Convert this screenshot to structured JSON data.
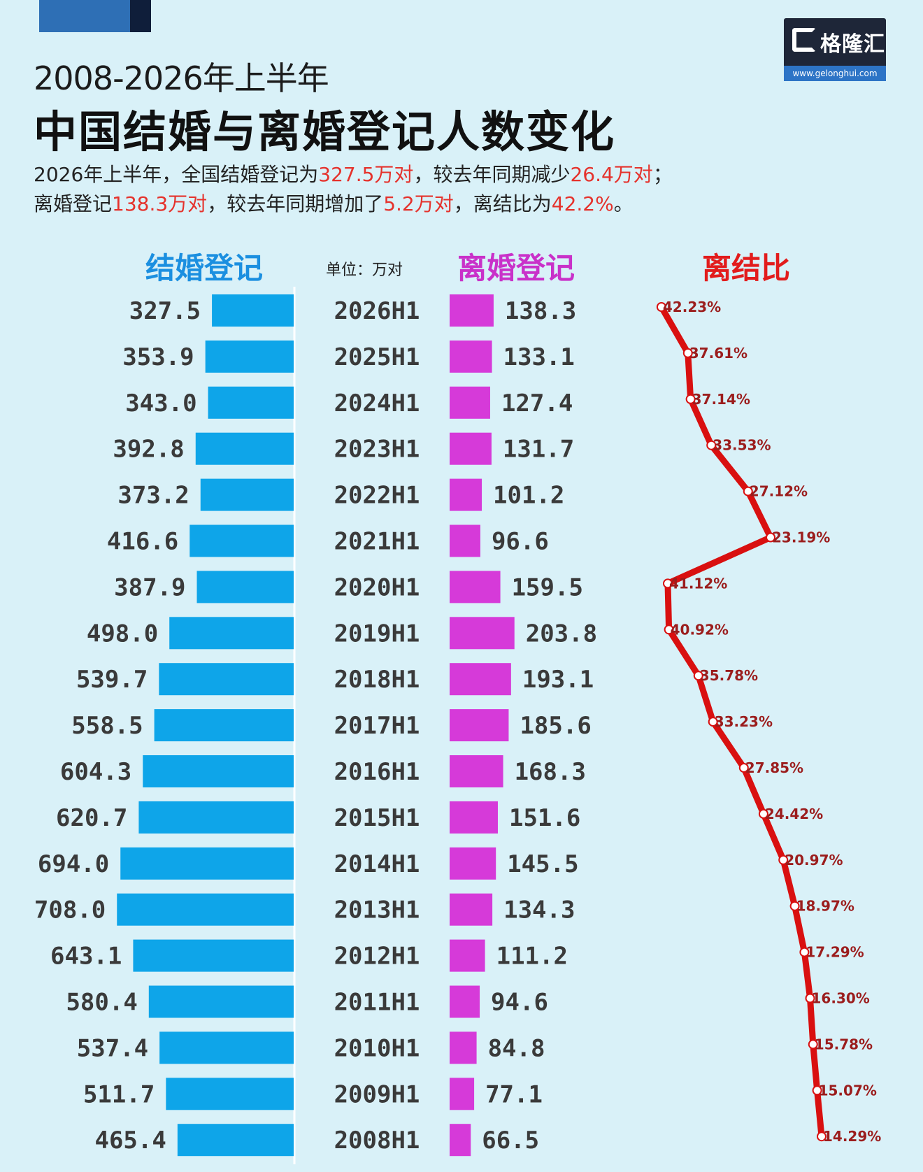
{
  "header": {
    "title_line1": "2008-2026年上半年",
    "title_line2": "中国结婚与离婚登记人数变化",
    "summary_line1": [
      {
        "text": "2026年上半年，全国结婚登记为",
        "highlight": false
      },
      {
        "text": "327.5万对",
        "highlight": true
      },
      {
        "text": "，较去年同期减少",
        "highlight": false
      },
      {
        "text": "26.4万对",
        "highlight": true
      },
      {
        "text": "；",
        "highlight": false
      }
    ],
    "summary_line2": [
      {
        "text": "离婚登记",
        "highlight": false
      },
      {
        "text": "138.3万对",
        "highlight": true
      },
      {
        "text": "，较去年同期增加了",
        "highlight": false
      },
      {
        "text": "5.2万对",
        "highlight": true
      },
      {
        "text": "，离结比为",
        "highlight": false
      },
      {
        "text": "42.2%",
        "highlight": true
      },
      {
        "text": "。",
        "highlight": false
      }
    ]
  },
  "brand": {
    "name": "格隆汇",
    "url": "www.gelonghui.com"
  },
  "columns": {
    "marriage": "结婚登记",
    "unit": "单位：万对",
    "divorce": "离婚登记",
    "ratio": "离结比"
  },
  "colors": {
    "marriage_bar": "#0ea5e9",
    "divorce_bar": "#d63ad9",
    "ratio_line": "#d91010",
    "highlight_text": "#e5322c",
    "marriage_head": "#1b8fe0",
    "divorce_head": "#c931c9",
    "ratio_head": "#e21c1c"
  },
  "chart_data": {
    "type": "bar",
    "categories": [
      "2026H1",
      "2025H1",
      "2024H1",
      "2023H1",
      "2022H1",
      "2021H1",
      "2020H1",
      "2019H1",
      "2018H1",
      "2017H1",
      "2016H1",
      "2015H1",
      "2014H1",
      "2013H1",
      "2012H1",
      "2011H1",
      "2010H1",
      "2009H1",
      "2008H1"
    ],
    "series": [
      {
        "name": "结婚登记",
        "values": [
          327.5,
          353.9,
          343.0,
          392.8,
          373.2,
          416.6,
          387.9,
          498.0,
          539.7,
          558.5,
          604.3,
          620.7,
          694.0,
          708.0,
          643.1,
          580.4,
          537.4,
          511.7,
          465.4
        ]
      },
      {
        "name": "离婚登记",
        "values": [
          138.3,
          133.1,
          127.4,
          131.7,
          101.2,
          96.6,
          159.5,
          203.8,
          193.1,
          185.6,
          168.3,
          151.6,
          145.5,
          134.3,
          111.2,
          94.6,
          84.8,
          77.1,
          66.5
        ]
      },
      {
        "name": "离结比",
        "type": "line",
        "values": [
          42.23,
          37.61,
          37.14,
          33.53,
          27.12,
          23.19,
          41.12,
          40.92,
          35.78,
          33.23,
          27.85,
          24.42,
          20.97,
          18.97,
          17.29,
          16.3,
          15.78,
          15.07,
          14.29
        ],
        "labels": [
          "42.23%",
          "37.61%",
          "37.14%",
          "33.53%",
          "27.12%",
          "23.19%",
          "41.12%",
          "40.92%",
          "35.78%",
          "33.23%",
          "27.85%",
          "24.42%",
          "20.97%",
          "18.97%",
          "17.29%",
          "16.30%",
          "15.78%",
          "15.07%",
          "14.29%"
        ]
      }
    ]
  }
}
